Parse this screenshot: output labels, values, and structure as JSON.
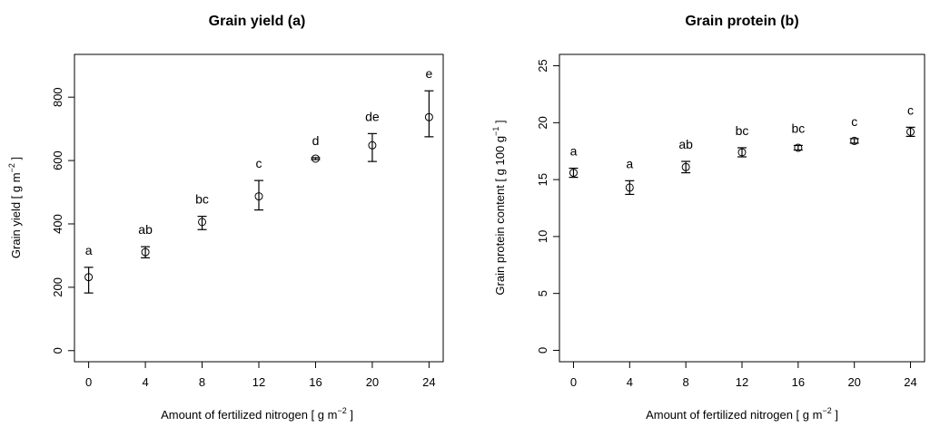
{
  "chart_data": [
    {
      "type": "scatter",
      "title": "Grain yield (a)",
      "xlabel": "Amount of fertilized nitrogen [ g m",
      "xlabel_sup": "−2",
      "xlabel_end": " ]",
      "ylabel": "Grain yield [ g m",
      "ylabel_sup": "−2",
      "ylabel_end": " ]",
      "x": [
        0,
        4,
        8,
        12,
        16,
        20,
        24
      ],
      "y": [
        232,
        311,
        406,
        487,
        606,
        648,
        737
      ],
      "err_low": [
        182,
        293,
        382,
        444,
        603,
        597,
        675
      ],
      "err_high": [
        263,
        328,
        424,
        537,
        609,
        685,
        820
      ],
      "letters": [
        "a",
        "ab",
        "bc",
        "c",
        "d",
        "de",
        "e"
      ],
      "xticks": [
        0,
        4,
        8,
        12,
        16,
        20,
        24
      ],
      "yticks": [
        0,
        200,
        400,
        600,
        800
      ],
      "xlim": [
        -1,
        25
      ],
      "ylim": [
        -35,
        935
      ],
      "grid": false
    },
    {
      "type": "scatter",
      "title": "Grain protein (b)",
      "xlabel": "Amount of fertilized nitrogen [ g m",
      "xlabel_sup": "−2",
      "xlabel_end": " ]",
      "ylabel": "Grain protein content [ g 100 g",
      "ylabel_sup": "−1",
      "ylabel_end": " ]",
      "x": [
        0,
        4,
        8,
        12,
        16,
        20,
        24
      ],
      "y": [
        15.6,
        14.3,
        16.1,
        17.4,
        17.8,
        18.4,
        19.2
      ],
      "err_low": [
        15.2,
        13.7,
        15.6,
        17.0,
        17.6,
        18.2,
        18.8
      ],
      "err_high": [
        16.0,
        14.9,
        16.6,
        17.8,
        18.0,
        18.6,
        19.6
      ],
      "letters": [
        "a",
        "a",
        "ab",
        "bc",
        "bc",
        "c",
        "c"
      ],
      "xticks": [
        0,
        4,
        8,
        12,
        16,
        20,
        24
      ],
      "yticks": [
        0,
        5,
        10,
        15,
        20,
        25
      ],
      "xlim": [
        -1,
        25
      ],
      "ylim": [
        -1,
        26
      ],
      "grid": false
    }
  ]
}
